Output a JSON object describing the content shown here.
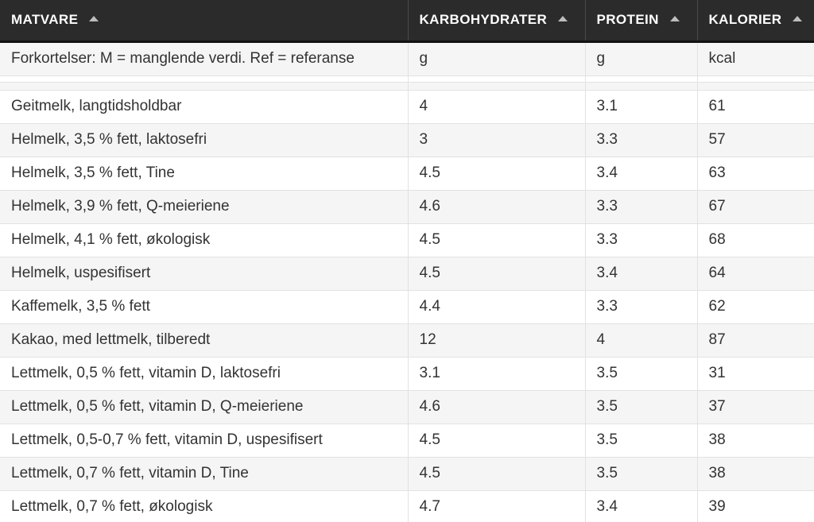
{
  "headers": [
    {
      "label": "MATVARE"
    },
    {
      "label": "KARBOHYDRATER"
    },
    {
      "label": "PROTEIN"
    },
    {
      "label": "KALORIER"
    }
  ],
  "abbreviation_row": {
    "matvare": "Forkortelser: M = manglende verdi. Ref = referanse",
    "karbo": "g",
    "protein": "g",
    "kalorier": "kcal"
  },
  "rows": [
    {
      "matvare": "Geitmelk, langtidsholdbar",
      "karbo": "4",
      "protein": "3.1",
      "kalorier": "61"
    },
    {
      "matvare": "Helmelk, 3,5 % fett, laktosefri",
      "karbo": "3",
      "protein": "3.3",
      "kalorier": "57"
    },
    {
      "matvare": "Helmelk, 3,5 % fett, Tine",
      "karbo": "4.5",
      "protein": "3.4",
      "kalorier": "63"
    },
    {
      "matvare": "Helmelk, 3,9 % fett, Q-meieriene",
      "karbo": "4.6",
      "protein": "3.3",
      "kalorier": "67"
    },
    {
      "matvare": "Helmelk, 4,1 % fett, økologisk",
      "karbo": "4.5",
      "protein": "3.3",
      "kalorier": "68"
    },
    {
      "matvare": "Helmelk, uspesifisert",
      "karbo": "4.5",
      "protein": "3.4",
      "kalorier": "64"
    },
    {
      "matvare": "Kaffemelk, 3,5 % fett",
      "karbo": "4.4",
      "protein": "3.3",
      "kalorier": "62"
    },
    {
      "matvare": "Kakao, med lettmelk, tilberedt",
      "karbo": "12",
      "protein": "4",
      "kalorier": "87"
    },
    {
      "matvare": "Lettmelk, 0,5 % fett, vitamin D, laktosefri",
      "karbo": "3.1",
      "protein": "3.5",
      "kalorier": "31"
    },
    {
      "matvare": "Lettmelk, 0,5 % fett, vitamin D, Q-meieriene",
      "karbo": "4.6",
      "protein": "3.5",
      "kalorier": "37"
    },
    {
      "matvare": "Lettmelk, 0,5-0,7 % fett, vitamin D, uspesifisert",
      "karbo": "4.5",
      "protein": "3.5",
      "kalorier": "38"
    },
    {
      "matvare": "Lettmelk, 0,7 % fett, vitamin D, Tine",
      "karbo": "4.5",
      "protein": "3.5",
      "kalorier": "38"
    },
    {
      "matvare": "Lettmelk, 0,7 % fett, økologisk",
      "karbo": "4.7",
      "protein": "3.4",
      "kalorier": "39"
    }
  ]
}
